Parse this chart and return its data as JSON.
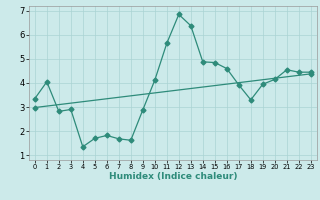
{
  "title": "",
  "xlabel": "Humidex (Indice chaleur)",
  "ylabel": "",
  "xlim": [
    -0.5,
    23.5
  ],
  "ylim": [
    0.8,
    7.2
  ],
  "xticks": [
    0,
    1,
    2,
    3,
    4,
    5,
    6,
    7,
    8,
    9,
    10,
    11,
    12,
    13,
    14,
    15,
    16,
    17,
    18,
    19,
    20,
    21,
    22,
    23
  ],
  "yticks": [
    1,
    2,
    3,
    4,
    5,
    6,
    7
  ],
  "line_color": "#2e8b7a",
  "background_color": "#cceaea",
  "grid_color": "#aad4d4",
  "data_x": [
    0,
    1,
    2,
    3,
    4,
    5,
    6,
    7,
    8,
    9,
    10,
    11,
    12,
    13,
    14,
    15,
    16,
    17,
    18,
    19,
    20,
    21,
    22,
    23
  ],
  "data_y": [
    3.35,
    4.05,
    2.82,
    2.9,
    1.35,
    1.7,
    1.82,
    1.68,
    1.62,
    2.88,
    4.12,
    5.65,
    6.85,
    6.38,
    4.88,
    4.85,
    4.6,
    3.92,
    3.3,
    3.95,
    4.15,
    4.55,
    4.45,
    4.45
  ],
  "trend_x": [
    0,
    23
  ],
  "trend_y": [
    2.98,
    4.38
  ],
  "marker_size": 2.5,
  "line_width": 0.9,
  "xlabel_fontsize": 6.5,
  "xtick_fontsize": 4.8,
  "ytick_fontsize": 6.0
}
